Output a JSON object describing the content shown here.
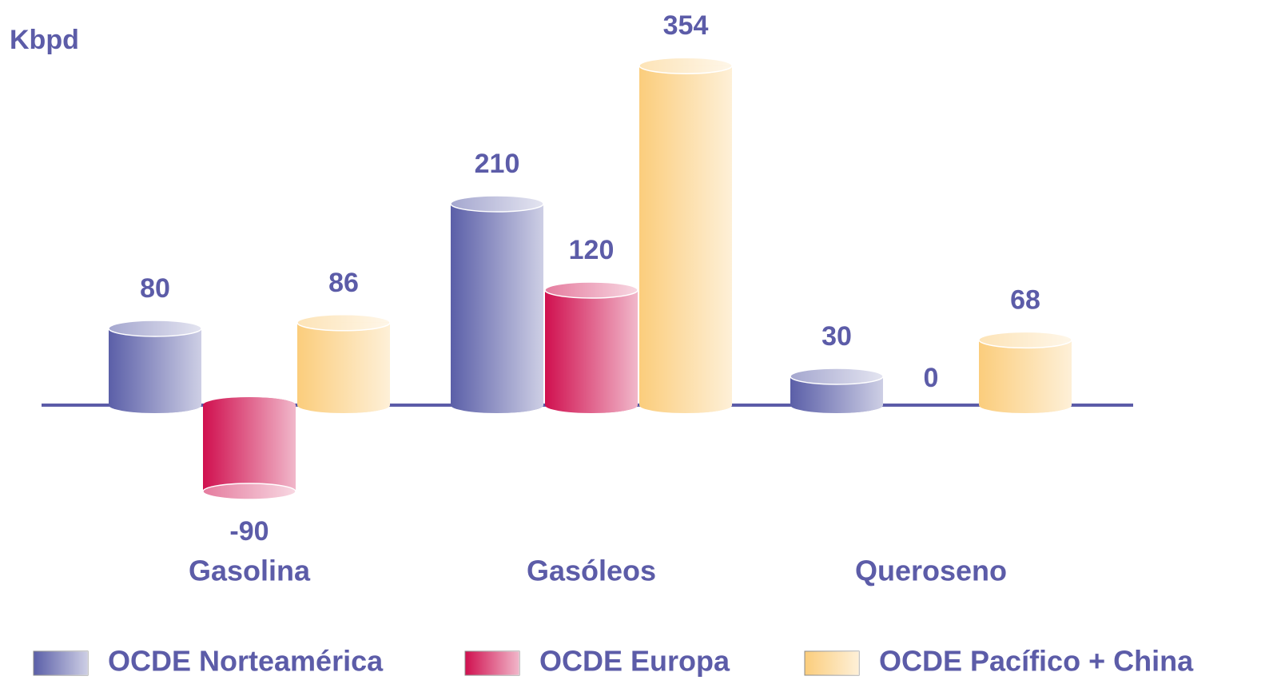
{
  "chart_data": {
    "type": "bar",
    "title": "Kbpd",
    "categories": [
      "Gasolina",
      "Gasóleos",
      "Queroseno"
    ],
    "series": [
      {
        "name": "OCDE Norteamérica",
        "color": "#5b5fa8",
        "values": [
          80,
          210,
          30
        ]
      },
      {
        "name": "OCDE Europa",
        "color": "#d0104f",
        "values": [
          -90,
          120,
          0
        ]
      },
      {
        "name": "OCDE Pacífico + China",
        "color": "#fbcd7c",
        "values": [
          86,
          354,
          68
        ]
      }
    ],
    "legend": "bottom"
  }
}
